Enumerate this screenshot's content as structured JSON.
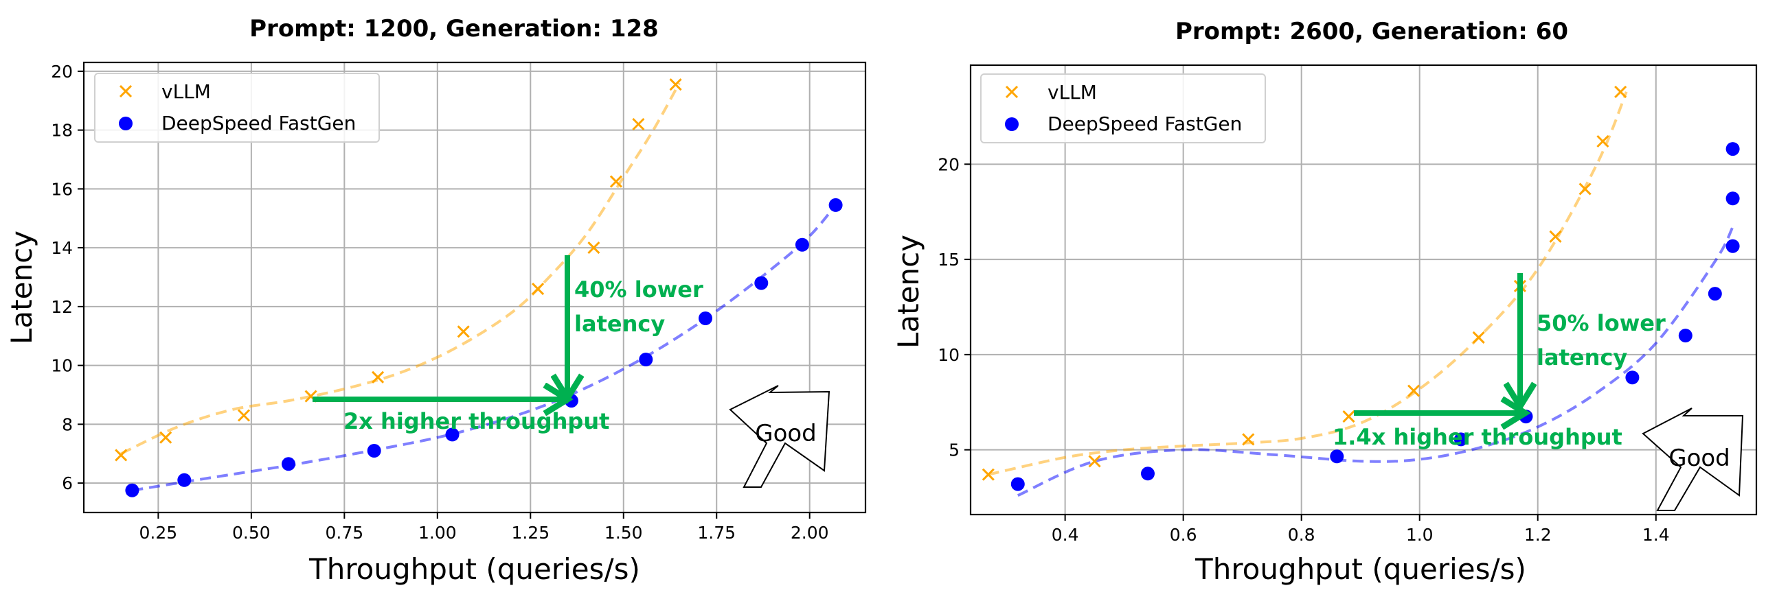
{
  "chart_data": [
    {
      "type": "scatter",
      "title": "Prompt: 1200, Generation: 128",
      "xlabel": "Throughput (queries/s)",
      "ylabel": "Latency",
      "xlim": [
        0.05,
        2.15
      ],
      "ylim": [
        5.0,
        20.3
      ],
      "xticks": [
        0.25,
        0.5,
        0.75,
        1.0,
        1.25,
        1.5,
        1.75,
        2.0
      ],
      "xtick_labels": [
        "0.25",
        "0.50",
        "0.75",
        "1.00",
        "1.25",
        "1.50",
        "1.75",
        "2.00"
      ],
      "yticks": [
        6,
        8,
        10,
        12,
        14,
        16,
        18,
        20
      ],
      "ytick_labels": [
        "6",
        "8",
        "10",
        "12",
        "14",
        "16",
        "18",
        "20"
      ],
      "grid": true,
      "legend": {
        "position": "top-left",
        "entries": [
          "vLLM",
          "DeepSpeed FastGen"
        ]
      },
      "series": [
        {
          "name": "vLLM",
          "marker": "x",
          "color": "#ffa500",
          "x": [
            0.15,
            0.27,
            0.48,
            0.66,
            0.84,
            1.07,
            1.27,
            1.42,
            1.48,
            1.54,
            1.64
          ],
          "y": [
            6.95,
            7.55,
            8.3,
            8.95,
            9.6,
            11.15,
            12.6,
            14.0,
            16.25,
            18.2,
            19.55
          ],
          "fit_x": [
            0.15,
            0.3,
            0.45,
            0.6,
            0.75,
            0.9,
            1.05,
            1.2,
            1.3,
            1.4,
            1.5,
            1.58,
            1.65
          ],
          "fit_y": [
            7.0,
            7.9,
            8.5,
            8.8,
            9.2,
            9.75,
            10.6,
            11.8,
            13.0,
            14.45,
            16.4,
            18.0,
            19.6
          ]
        },
        {
          "name": "DeepSpeed FastGen",
          "marker": "o",
          "color": "#0000ff",
          "x": [
            0.18,
            0.32,
            0.6,
            0.83,
            1.04,
            1.36,
            1.56,
            1.72,
            1.87,
            1.98,
            2.07
          ],
          "y": [
            5.75,
            6.1,
            6.65,
            7.1,
            7.65,
            8.8,
            10.2,
            11.6,
            12.8,
            14.1,
            15.45
          ],
          "fit_x": [
            0.18,
            0.4,
            0.6,
            0.8,
            1.0,
            1.15,
            1.3,
            1.45,
            1.6,
            1.75,
            1.9,
            2.0,
            2.07
          ],
          "fit_y": [
            5.75,
            6.2,
            6.6,
            7.05,
            7.55,
            8.05,
            8.7,
            9.55,
            10.6,
            11.85,
            13.3,
            14.4,
            15.45
          ]
        }
      ],
      "annotations": {
        "horizontal_text": "2x higher throughput",
        "vertical_line1": "40% lower",
        "vertical_line2": "latency",
        "good_label": "Good"
      }
    },
    {
      "type": "scatter",
      "title": "Prompt: 2600, Generation: 60",
      "xlabel": "Throughput (queries/s)",
      "ylabel": "Latency",
      "xlim": [
        0.24,
        1.57
      ],
      "ylim": [
        1.6,
        25.2
      ],
      "xticks": [
        0.4,
        0.6,
        0.8,
        1.0,
        1.2,
        1.4
      ],
      "xtick_labels": [
        "0.4",
        "0.6",
        "0.8",
        "1.0",
        "1.2",
        "1.4"
      ],
      "yticks": [
        5,
        10,
        15,
        20
      ],
      "ytick_labels": [
        "5",
        "10",
        "15",
        "20"
      ],
      "grid": true,
      "legend": {
        "position": "top-left",
        "entries": [
          "vLLM",
          "DeepSpeed FastGen"
        ]
      },
      "series": [
        {
          "name": "vLLM",
          "marker": "x",
          "color": "#ffa500",
          "x": [
            0.27,
            0.45,
            0.71,
            0.88,
            0.99,
            1.1,
            1.17,
            1.23,
            1.28,
            1.31,
            1.34
          ],
          "y": [
            3.7,
            4.4,
            5.55,
            6.75,
            8.1,
            10.9,
            13.6,
            16.2,
            18.7,
            21.2,
            23.8
          ],
          "fit_x": [
            0.27,
            0.4,
            0.5,
            0.6,
            0.7,
            0.8,
            0.9,
            1.0,
            1.1,
            1.2,
            1.3,
            1.35
          ],
          "fit_y": [
            3.7,
            4.6,
            5.0,
            5.2,
            5.35,
            5.6,
            6.4,
            8.2,
            10.9,
            14.5,
            20.0,
            23.8
          ]
        },
        {
          "name": "DeepSpeed FastGen",
          "marker": "o",
          "color": "#0000ff",
          "x": [
            0.32,
            0.54,
            0.86,
            1.07,
            1.18,
            1.36,
            1.45,
            1.5,
            1.53,
            1.53,
            1.53
          ],
          "y": [
            3.2,
            3.75,
            4.65,
            5.55,
            6.75,
            8.8,
            11.0,
            13.2,
            15.7,
            18.2,
            20.8
          ],
          "fit_x": [
            0.32,
            0.45,
            0.6,
            0.75,
            0.9,
            1.0,
            1.1,
            1.2,
            1.3,
            1.4,
            1.5,
            1.53
          ],
          "fit_y": [
            2.6,
            4.4,
            5.0,
            4.75,
            4.4,
            4.5,
            5.1,
            6.2,
            8.0,
            10.6,
            14.9,
            16.7
          ]
        }
      ],
      "annotations": {
        "horizontal_text": "1.4x higher throughput",
        "vertical_line1": "50% lower",
        "vertical_line2": "latency",
        "good_label": "Good"
      }
    }
  ]
}
